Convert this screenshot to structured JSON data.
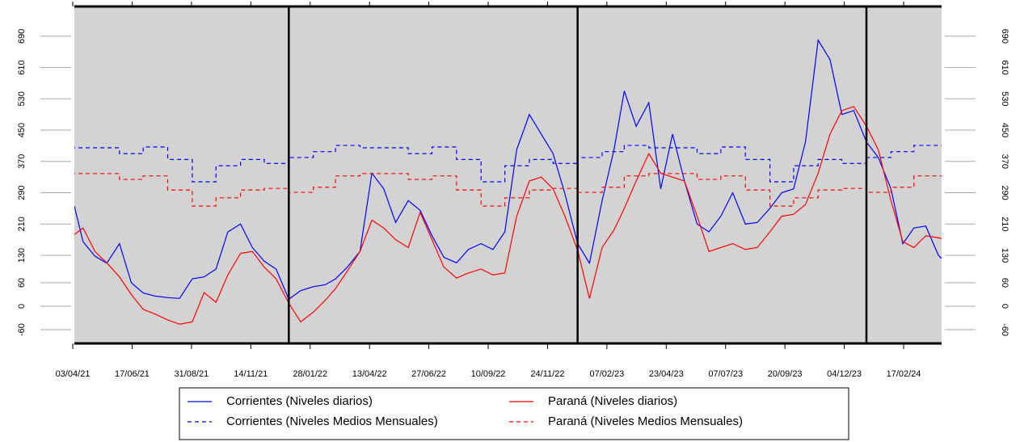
{
  "chart_data": {
    "type": "line",
    "xlim": [
      "05/04/21",
      "05/04/24"
    ],
    "ylim": [
      -95,
      766
    ],
    "yticks": [
      -60,
      0,
      60,
      130,
      210,
      290,
      370,
      450,
      530,
      610,
      690
    ],
    "xticks": [
      "03/04/21",
      "17/06/21",
      "31/08/21",
      "14/11/21",
      "28/01/22",
      "13/04/22",
      "27/06/22",
      "10/09/22",
      "24/11/22",
      "07/02/23",
      "23/04/23",
      "07/07/23",
      "20/09/23",
      "04/12/23",
      "17/02/24"
    ],
    "vlines": [
      "01/01/22",
      "01/01/23",
      "01/01/24"
    ],
    "legend": "bottom",
    "series": [
      {
        "name": "Corrientes (Niveles diarios)",
        "color": "#0000ff",
        "dash": false,
        "x": [
          "05/04/21",
          "16/04/21",
          "01/05/21",
          "16/05/21",
          "01/06/21",
          "16/06/21",
          "01/07/21",
          "16/07/21",
          "01/08/21",
          "16/08/21",
          "01/09/21",
          "16/09/21",
          "01/10/21",
          "16/10/21",
          "01/11/21",
          "16/11/21",
          "01/12/21",
          "16/12/21",
          "01/01/22",
          "16/01/22",
          "01/02/22",
          "16/02/22",
          "01/03/22",
          "16/03/22",
          "01/04/22",
          "16/04/22",
          "01/05/22",
          "16/05/22",
          "01/06/22",
          "16/06/22",
          "01/07/22",
          "16/07/22",
          "01/08/22",
          "16/08/22",
          "01/09/22",
          "16/09/22",
          "01/10/22",
          "16/10/22",
          "01/11/22",
          "16/11/22",
          "01/12/22",
          "16/12/22",
          "01/01/23",
          "16/01/23",
          "01/02/23",
          "16/02/23",
          "01/03/23",
          "16/03/23",
          "01/04/23",
          "16/04/23",
          "01/05/23",
          "16/05/23",
          "01/06/23",
          "16/06/23",
          "01/07/23",
          "16/07/23",
          "01/08/23",
          "16/08/23",
          "01/09/23",
          "16/09/23",
          "01/10/23",
          "16/10/23",
          "01/11/23",
          "16/11/23",
          "01/12/23",
          "16/12/23",
          "01/01/24",
          "16/01/24",
          "01/02/24",
          "16/02/24",
          "01/03/24",
          "16/03/24",
          "01/04/24",
          "05/04/24"
        ],
        "values": [
          256,
          165,
          128,
          110,
          160,
          60,
          34,
          26,
          22,
          20,
          70,
          75,
          95,
          190,
          210,
          150,
          115,
          95,
          18,
          40,
          50,
          55,
          70,
          100,
          140,
          340,
          300,
          214,
          270,
          245,
          180,
          125,
          111,
          145,
          160,
          145,
          190,
          400,
          490,
          440,
          390,
          287,
          160,
          110,
          270,
          400,
          550,
          460,
          520,
          300,
          440,
          320,
          210,
          190,
          230,
          290,
          210,
          214,
          250,
          290,
          300,
          420,
          680,
          630,
          490,
          500,
          420,
          380,
          300,
          160,
          200,
          205,
          130,
          122
        ]
      },
      {
        "name": "Corrientes (Niveles Medios Mensuales)",
        "color": "#0000ff",
        "dash": true,
        "x": [
          "01/04/21",
          "01/05/21",
          "01/06/21",
          "01/07/21",
          "01/08/21",
          "01/09/21",
          "01/10/21",
          "01/11/21",
          "01/12/21",
          "01/01/22",
          "01/02/22",
          "01/03/22",
          "01/04/22",
          "01/05/22",
          "01/06/22",
          "01/07/22",
          "01/08/22",
          "01/09/22",
          "01/10/22",
          "01/11/22",
          "01/12/22",
          "01/01/23",
          "01/02/23",
          "01/03/23",
          "01/04/23",
          "01/05/23",
          "01/06/23",
          "01/07/23",
          "01/08/23",
          "01/09/23",
          "01/10/23",
          "01/11/23",
          "01/12/23",
          "01/01/24",
          "01/02/24",
          "01/03/24"
        ],
        "values": [
          405,
          405,
          390,
          407,
          375,
          318,
          359,
          375,
          365,
          380,
          395,
          411,
          405,
          405,
          390,
          407,
          375,
          318,
          359,
          375,
          365,
          380,
          395,
          411,
          405,
          405,
          390,
          407,
          375,
          318,
          359,
          375,
          365,
          380,
          395,
          411
        ]
      },
      {
        "name": "Paraná (Niveles diarios)",
        "color": "#ff0000",
        "dash": false,
        "x": [
          "05/04/21",
          "16/04/21",
          "01/05/21",
          "16/05/21",
          "01/06/21",
          "16/06/21",
          "01/07/21",
          "16/07/21",
          "01/08/21",
          "16/08/21",
          "01/09/21",
          "16/09/21",
          "01/10/21",
          "16/10/21",
          "01/11/21",
          "16/11/21",
          "01/12/21",
          "16/12/21",
          "01/01/22",
          "16/01/22",
          "01/02/22",
          "16/02/22",
          "01/03/22",
          "16/03/22",
          "01/04/22",
          "16/04/22",
          "01/05/22",
          "16/05/22",
          "01/06/22",
          "16/06/22",
          "01/07/22",
          "16/07/22",
          "01/08/22",
          "16/08/22",
          "01/09/22",
          "16/09/22",
          "01/10/22",
          "16/10/22",
          "01/11/22",
          "16/11/22",
          "01/12/22",
          "16/12/22",
          "01/01/23",
          "16/01/23",
          "01/02/23",
          "16/02/23",
          "01/03/23",
          "16/03/23",
          "01/04/23",
          "16/04/23",
          "01/05/23",
          "16/05/23",
          "01/06/23",
          "16/06/23",
          "01/07/23",
          "16/07/23",
          "01/08/23",
          "16/08/23",
          "01/09/23",
          "16/09/23",
          "01/10/23",
          "16/10/23",
          "01/11/23",
          "16/11/23",
          "01/12/23",
          "16/12/23",
          "01/01/24",
          "16/01/24",
          "01/02/24",
          "16/02/24",
          "01/03/24",
          "16/03/24",
          "01/04/24",
          "05/04/24"
        ],
        "values": [
          183,
          200,
          140,
          111,
          75,
          30,
          -8,
          -20,
          -35,
          -46,
          -40,
          35,
          10,
          80,
          135,
          140,
          100,
          70,
          8,
          -40,
          -15,
          15,
          45,
          90,
          140,
          220,
          200,
          170,
          150,
          240,
          170,
          100,
          72,
          85,
          95,
          80,
          85,
          230,
          320,
          330,
          300,
          230,
          143,
          20,
          150,
          195,
          250,
          320,
          390,
          340,
          330,
          320,
          230,
          140,
          150,
          160,
          145,
          150,
          190,
          230,
          235,
          260,
          340,
          440,
          500,
          510,
          460,
          400,
          270,
          165,
          150,
          180,
          175,
          173
        ]
      },
      {
        "name": "Paraná (Niveles Medios Mensuales)",
        "color": "#ff0000",
        "dash": true,
        "x": [
          "01/04/21",
          "01/05/21",
          "01/06/21",
          "01/07/21",
          "01/08/21",
          "01/09/21",
          "01/10/21",
          "01/11/21",
          "01/12/21",
          "01/01/22",
          "01/02/22",
          "01/03/22",
          "01/04/22",
          "01/05/22",
          "01/06/22",
          "01/07/22",
          "01/08/22",
          "01/09/22",
          "01/10/22",
          "01/11/22",
          "01/12/22",
          "01/01/23",
          "01/02/23",
          "01/03/23",
          "01/04/23",
          "01/05/23",
          "01/06/23",
          "01/07/23",
          "01/08/23",
          "01/09/23",
          "01/10/23",
          "01/11/23",
          "01/12/23",
          "01/01/24",
          "01/02/24",
          "01/03/24"
        ],
        "values": [
          339,
          339,
          324,
          333,
          297,
          256,
          277,
          297,
          301,
          291,
          304,
          333,
          339,
          339,
          324,
          333,
          297,
          256,
          277,
          297,
          301,
          291,
          304,
          333,
          339,
          339,
          324,
          333,
          297,
          256,
          277,
          297,
          301,
          291,
          304,
          333
        ]
      }
    ]
  }
}
